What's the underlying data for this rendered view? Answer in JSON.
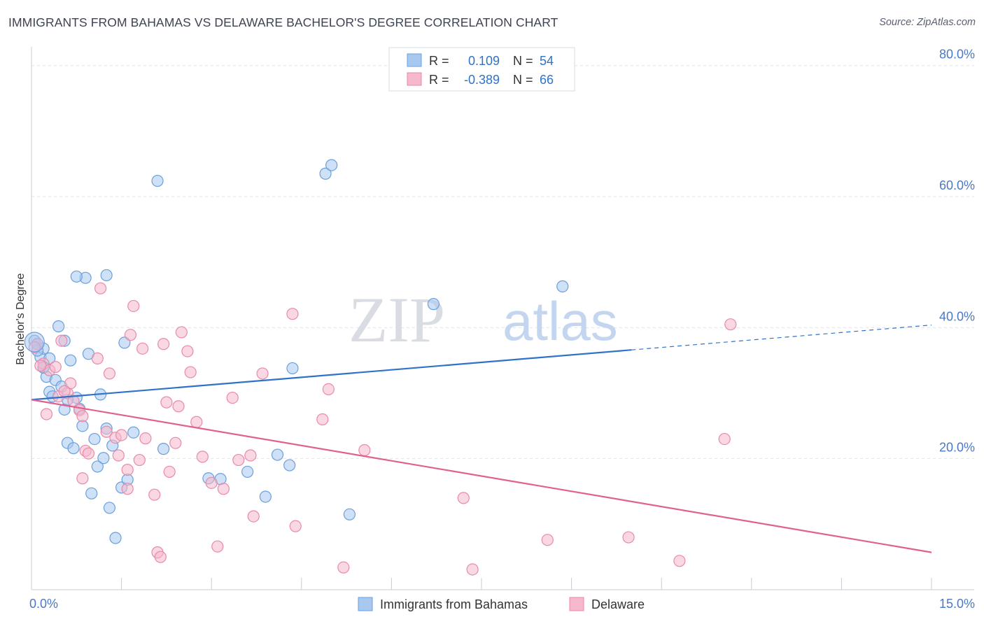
{
  "title": "IMMIGRANTS FROM BAHAMAS VS DELAWARE BACHELOR'S DEGREE CORRELATION CHART",
  "source": "Source: ZipAtlas.com",
  "watermark": {
    "zip": "ZIP",
    "atlas": "atlas"
  },
  "colors": {
    "blue_fill": "#a8c8f0",
    "blue_stroke": "#6b9fdc",
    "blue_line": "#2f72c8",
    "pink_fill": "#f5b8cc",
    "pink_stroke": "#e88aa8",
    "pink_line": "#e0608e",
    "grid": "#e0e3ea",
    "tick_label": "#4a78c8",
    "axis_label": "#333333"
  },
  "legend": {
    "rows": [
      {
        "r_label": "R =",
        "r_value": "0.109",
        "n_label": "N =",
        "n_value": "54",
        "series": "blue"
      },
      {
        "r_label": "R =",
        "r_value": "-0.389",
        "n_label": "N =",
        "n_value": "66",
        "series": "pink"
      }
    ]
  },
  "bottom_legend": [
    {
      "label": "Immigrants from Bahamas",
      "series": "blue"
    },
    {
      "label": "Delaware",
      "series": "pink"
    }
  ],
  "chart_data": {
    "type": "scatter",
    "title": "IMMIGRANTS FROM BAHAMAS VS DELAWARE BACHELOR'S DEGREE CORRELATION CHART",
    "xlabel": "",
    "ylabel": "Bachelor's Degree",
    "xlim": [
      0,
      15
    ],
    "ylim": [
      0,
      82
    ],
    "x_tick_labels": [
      "0.0%",
      "15.0%"
    ],
    "y_ticks": [
      20,
      40,
      60,
      80
    ],
    "y_tick_labels": [
      "20.0%",
      "40.0%",
      "60.0%",
      "80.0%"
    ],
    "grid": true,
    "series": [
      {
        "name": "Immigrants from Bahamas",
        "color": "blue",
        "R": 0.109,
        "N": 54,
        "trend": {
          "x0": 0,
          "y0": 29.0,
          "x1": 10.0,
          "y1": 36.6,
          "dash_to_x": 15,
          "dash_to_y": 40.4
        },
        "points": [
          [
            0.05,
            38.0
          ],
          [
            0.1,
            37.5
          ],
          [
            0.15,
            35.5
          ],
          [
            0.2,
            36.8
          ],
          [
            0.2,
            34.0
          ],
          [
            0.25,
            32.5
          ],
          [
            0.3,
            30.2
          ],
          [
            0.35,
            29.5
          ],
          [
            0.4,
            32.0
          ],
          [
            0.45,
            40.2
          ],
          [
            0.5,
            31.0
          ],
          [
            0.55,
            27.5
          ],
          [
            0.6,
            22.4
          ],
          [
            0.65,
            35.0
          ],
          [
            0.7,
            21.6
          ],
          [
            0.75,
            29.3
          ],
          [
            0.8,
            27.6
          ],
          [
            0.85,
            25.0
          ],
          [
            0.9,
            47.6
          ],
          [
            0.95,
            36.0
          ],
          [
            0.75,
            47.8
          ],
          [
            1.0,
            14.7
          ],
          [
            1.05,
            23.0
          ],
          [
            1.1,
            18.8
          ],
          [
            1.15,
            29.8
          ],
          [
            1.2,
            20.1
          ],
          [
            1.25,
            24.6
          ],
          [
            1.3,
            12.5
          ],
          [
            1.35,
            22.0
          ],
          [
            1.4,
            7.9
          ],
          [
            1.5,
            15.6
          ],
          [
            1.55,
            37.7
          ],
          [
            1.6,
            16.8
          ],
          [
            1.7,
            24.0
          ],
          [
            2.1,
            62.4
          ],
          [
            2.2,
            21.5
          ],
          [
            2.95,
            17.0
          ],
          [
            3.15,
            16.9
          ],
          [
            3.6,
            18.0
          ],
          [
            3.9,
            14.2
          ],
          [
            4.1,
            20.6
          ],
          [
            4.3,
            19.0
          ],
          [
            4.35,
            33.8
          ],
          [
            4.9,
            63.5
          ],
          [
            5.0,
            64.8
          ],
          [
            5.3,
            11.5
          ],
          [
            6.7,
            43.6
          ],
          [
            8.85,
            46.3
          ],
          [
            0.3,
            35.3
          ],
          [
            0.55,
            38.0
          ],
          [
            0.2,
            33.9
          ],
          [
            1.25,
            48.0
          ],
          [
            0.1,
            36.5
          ],
          [
            0.6,
            29.0
          ]
        ]
      },
      {
        "name": "Delaware",
        "color": "pink",
        "R": -0.389,
        "N": 66,
        "trend": {
          "x0": 0,
          "y0": 29.0,
          "x1": 15,
          "y1": 5.7
        },
        "points": [
          [
            0.1,
            37.5
          ],
          [
            0.2,
            34.5
          ],
          [
            0.25,
            26.8
          ],
          [
            0.3,
            33.5
          ],
          [
            0.4,
            34.0
          ],
          [
            0.45,
            29.5
          ],
          [
            0.5,
            38.0
          ],
          [
            0.6,
            30.0
          ],
          [
            0.65,
            31.5
          ],
          [
            0.7,
            28.8
          ],
          [
            0.8,
            27.4
          ],
          [
            0.85,
            26.5
          ],
          [
            0.85,
            17.0
          ],
          [
            0.9,
            21.2
          ],
          [
            0.95,
            20.8
          ],
          [
            1.1,
            35.3
          ],
          [
            1.15,
            46.0
          ],
          [
            1.25,
            24.1
          ],
          [
            1.3,
            33.0
          ],
          [
            1.4,
            23.2
          ],
          [
            1.45,
            20.5
          ],
          [
            1.5,
            23.6
          ],
          [
            1.6,
            18.3
          ],
          [
            1.6,
            15.4
          ],
          [
            1.65,
            38.9
          ],
          [
            1.7,
            43.3
          ],
          [
            1.8,
            19.8
          ],
          [
            1.85,
            36.8
          ],
          [
            1.9,
            23.1
          ],
          [
            2.05,
            14.5
          ],
          [
            2.1,
            5.7
          ],
          [
            2.15,
            5.0
          ],
          [
            2.2,
            37.5
          ],
          [
            2.25,
            28.6
          ],
          [
            2.3,
            18.0
          ],
          [
            2.4,
            22.4
          ],
          [
            2.45,
            28.0
          ],
          [
            2.5,
            39.3
          ],
          [
            2.6,
            36.4
          ],
          [
            2.65,
            33.2
          ],
          [
            2.75,
            25.6
          ],
          [
            2.85,
            20.3
          ],
          [
            3.0,
            16.3
          ],
          [
            3.1,
            6.6
          ],
          [
            3.2,
            15.4
          ],
          [
            3.35,
            29.3
          ],
          [
            3.45,
            19.8
          ],
          [
            3.65,
            20.5
          ],
          [
            3.7,
            11.2
          ],
          [
            3.85,
            33.0
          ],
          [
            4.35,
            42.1
          ],
          [
            4.4,
            9.7
          ],
          [
            4.85,
            26.0
          ],
          [
            4.95,
            30.6
          ],
          [
            5.2,
            3.4
          ],
          [
            5.55,
            21.3
          ],
          [
            7.2,
            14.0
          ],
          [
            7.35,
            3.1
          ],
          [
            8.6,
            7.6
          ],
          [
            9.95,
            8.0
          ],
          [
            10.8,
            4.4
          ],
          [
            11.55,
            23.0
          ],
          [
            11.65,
            40.5
          ],
          [
            0.05,
            37.0
          ],
          [
            0.15,
            34.2
          ],
          [
            0.55,
            30.3
          ]
        ]
      }
    ]
  }
}
